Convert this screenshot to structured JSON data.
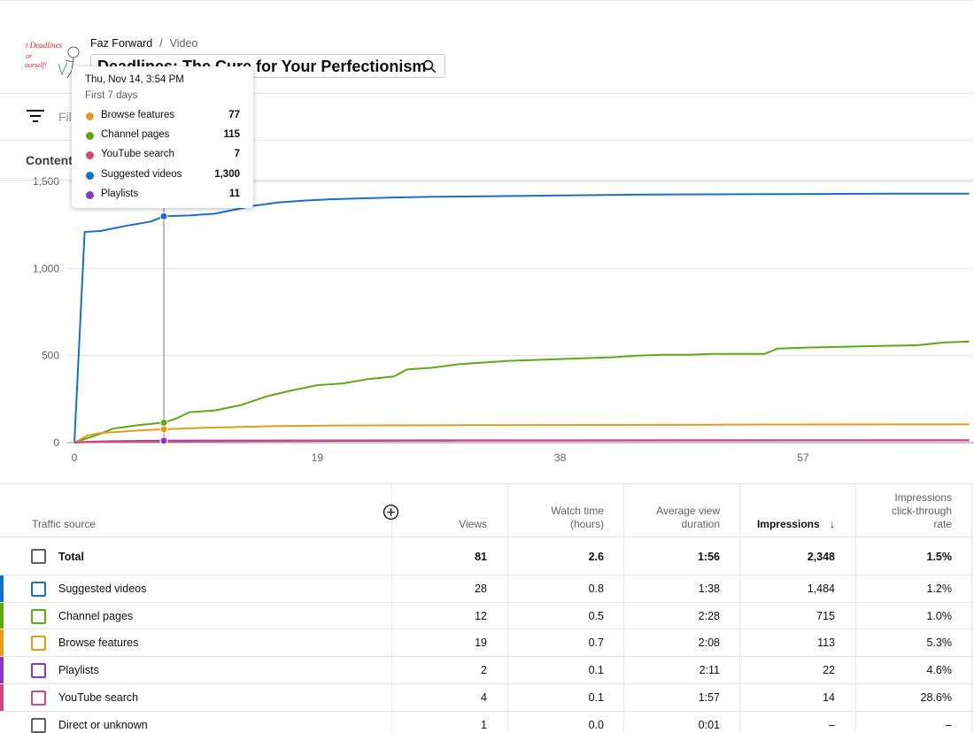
{
  "header": {
    "channel": "Faz Forward",
    "separator": "/",
    "section": "Video",
    "video_title": "Deadlines: The Cure for Your Perfectionism",
    "thumbnail_text": "Deadlines for yourself!"
  },
  "toolbar": {
    "filter_label": "Filter"
  },
  "tabs": {
    "content": "Content"
  },
  "tooltip": {
    "date": "Thu, Nov 14, 3:54 PM",
    "period": "First 7 days",
    "rows": [
      {
        "label": "Browse features",
        "value": "77",
        "color": "#e59b1b"
      },
      {
        "label": "Channel pages",
        "value": "115",
        "color": "#5fa915"
      },
      {
        "label": "YouTube search",
        "value": "7",
        "color": "#d1497a"
      },
      {
        "label": "Suggested videos",
        "value": "1,300",
        "color": "#1670c9"
      },
      {
        "label": "Playlists",
        "value": "11",
        "color": "#8b36c2"
      }
    ]
  },
  "chart_data": {
    "type": "line",
    "x_ticks": [
      "0",
      "19",
      "38",
      "57"
    ],
    "y_ticks": [
      "0",
      "500",
      "1,000",
      "1,500"
    ],
    "ylim": [
      0,
      1500
    ],
    "xlim": [
      0,
      70
    ],
    "grid": true,
    "hover_x": 7,
    "series": [
      {
        "name": "Suggested videos",
        "color": "#1670c9",
        "points": [
          [
            0,
            0
          ],
          [
            0.8,
            1210
          ],
          [
            2,
            1215
          ],
          [
            4,
            1245
          ],
          [
            6,
            1270
          ],
          [
            7,
            1300
          ],
          [
            9,
            1305
          ],
          [
            11,
            1315
          ],
          [
            12,
            1330
          ],
          [
            14,
            1360
          ],
          [
            16,
            1380
          ],
          [
            18,
            1390
          ],
          [
            20,
            1398
          ],
          [
            22,
            1402
          ],
          [
            25,
            1408
          ],
          [
            28,
            1412
          ],
          [
            32,
            1415
          ],
          [
            36,
            1418
          ],
          [
            40,
            1421
          ],
          [
            44,
            1424
          ],
          [
            48,
            1426
          ],
          [
            52,
            1427
          ],
          [
            56,
            1428
          ],
          [
            60,
            1429
          ],
          [
            64,
            1430
          ],
          [
            70,
            1430
          ]
        ]
      },
      {
        "name": "Channel pages",
        "color": "#5fa915",
        "points": [
          [
            0,
            0
          ],
          [
            1,
            25
          ],
          [
            2,
            50
          ],
          [
            3,
            80
          ],
          [
            4,
            90
          ],
          [
            5,
            100
          ],
          [
            6,
            108
          ],
          [
            7,
            115
          ],
          [
            8,
            140
          ],
          [
            9,
            175
          ],
          [
            11,
            185
          ],
          [
            13,
            215
          ],
          [
            14,
            240
          ],
          [
            15,
            265
          ],
          [
            17,
            300
          ],
          [
            19,
            330
          ],
          [
            21,
            340
          ],
          [
            23,
            365
          ],
          [
            25,
            380
          ],
          [
            26,
            420
          ],
          [
            28,
            430
          ],
          [
            30,
            450
          ],
          [
            32,
            460
          ],
          [
            34,
            470
          ],
          [
            36,
            475
          ],
          [
            38,
            480
          ],
          [
            40,
            485
          ],
          [
            42,
            490
          ],
          [
            44,
            500
          ],
          [
            46,
            505
          ],
          [
            48,
            505
          ],
          [
            50,
            510
          ],
          [
            52,
            510
          ],
          [
            54,
            510
          ],
          [
            55,
            540
          ],
          [
            57,
            545
          ],
          [
            60,
            550
          ],
          [
            63,
            555
          ],
          [
            66,
            560
          ],
          [
            68,
            575
          ],
          [
            70,
            580
          ]
        ]
      },
      {
        "name": "Browse features",
        "color": "#e59b1b",
        "points": [
          [
            0,
            0
          ],
          [
            1,
            40
          ],
          [
            2,
            55
          ],
          [
            3,
            60
          ],
          [
            5,
            70
          ],
          [
            7,
            77
          ],
          [
            10,
            85
          ],
          [
            13,
            90
          ],
          [
            16,
            95
          ],
          [
            20,
            98
          ],
          [
            30,
            100
          ],
          [
            45,
            102
          ],
          [
            55,
            104
          ],
          [
            65,
            105
          ],
          [
            70,
            105
          ]
        ]
      },
      {
        "name": "Playlists",
        "color": "#8b36c2",
        "points": [
          [
            0,
            0
          ],
          [
            1,
            5
          ],
          [
            3,
            8
          ],
          [
            7,
            11
          ],
          [
            15,
            12
          ],
          [
            30,
            13
          ],
          [
            50,
            14
          ],
          [
            70,
            14
          ]
        ]
      },
      {
        "name": "YouTube search",
        "color": "#d1497a",
        "points": [
          [
            0,
            0
          ],
          [
            1,
            3
          ],
          [
            3,
            5
          ],
          [
            7,
            7
          ],
          [
            15,
            9
          ],
          [
            30,
            11
          ],
          [
            50,
            12
          ],
          [
            70,
            13
          ]
        ]
      }
    ]
  },
  "table": {
    "headers": {
      "source": "Traffic source",
      "views": "Views",
      "watch_time_1": "Watch time",
      "watch_time_2": "(hours)",
      "avd_1": "Average view",
      "avd_2": "duration",
      "impressions": "Impressions",
      "sort_arrow": "↓",
      "ctr_1": "Impressions",
      "ctr_2": "click-through",
      "ctr_3": "rate"
    },
    "total": {
      "label": "Total",
      "views": "81",
      "watch": "2.6",
      "avd": "1:56",
      "impressions": "2,348",
      "ctr": "1.5%"
    },
    "rows": [
      {
        "label": "Suggested videos",
        "views": "28",
        "watch": "0.8",
        "avd": "1:38",
        "impressions": "1,484",
        "ctr": "1.2%",
        "color": "#1670c9"
      },
      {
        "label": "Channel pages",
        "views": "12",
        "watch": "0.5",
        "avd": "2:28",
        "impressions": "715",
        "ctr": "1.0%",
        "color": "#5fa915"
      },
      {
        "label": "Browse features",
        "views": "19",
        "watch": "0.7",
        "avd": "2:08",
        "impressions": "113",
        "ctr": "5.3%",
        "color": "#e59b1b"
      },
      {
        "label": "Playlists",
        "views": "2",
        "watch": "0.1",
        "avd": "2:11",
        "impressions": "22",
        "ctr": "4.6%",
        "color": "#8b36c2"
      },
      {
        "label": "YouTube search",
        "views": "4",
        "watch": "0.1",
        "avd": "1:57",
        "impressions": "14",
        "ctr": "28.6%",
        "color": "#d1497a"
      },
      {
        "label": "Direct or unknown",
        "views": "1",
        "watch": "0.0",
        "avd": "0:01",
        "impressions": "–",
        "ctr": "–",
        "color": ""
      }
    ]
  }
}
